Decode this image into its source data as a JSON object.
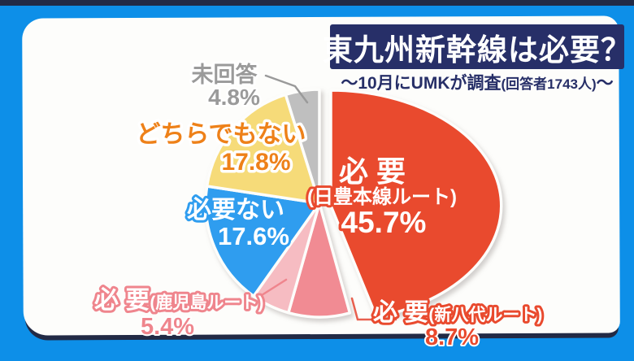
{
  "frame": {
    "background_color": "#0D8FE8",
    "strip_color": "#222A45",
    "panel_color": "#FDFDFB"
  },
  "header": {
    "title": "東九州新幹線は必要？",
    "title_bg_color": "#272F68",
    "subtitle_prefix": "〜10月にUMKが調査",
    "subtitle_paren": "(回答者1743人)",
    "subtitle_suffix": "〜",
    "subtitle_color": "#272F68"
  },
  "chart_data": {
    "type": "pie",
    "title": "東九州新幹線は必要？",
    "subtitle": "〜10月にUMKが調査(回答者1743人)〜",
    "survey_month": "10月",
    "surveyor": "UMK",
    "respondents": 1743,
    "unit": "%",
    "start_angle_deg": 0,
    "direction": "clockwise",
    "slices": [
      {
        "id": "hitsuyo-nippo",
        "label": "必 要",
        "sublabel": "(日豊本線ルート)",
        "value": 45.7,
        "value_text": "45.7%",
        "color": "#E94A2E",
        "label_fill": "#FFFFFF",
        "label_stroke": "#E94A2E"
      },
      {
        "id": "hitsuyo-shinyatsushiro",
        "label": "必 要",
        "sublabel": "(新八代ルート)",
        "value": 8.7,
        "value_text": "8.7%",
        "color": "#F18B93",
        "label_fill": "#FFFFFF",
        "label_stroke": "#E94A2E",
        "value_color": "#E94A2E"
      },
      {
        "id": "hitsuyo-kagoshima",
        "label": "必 要",
        "sublabel": "(鹿児島ルート)",
        "value": 5.4,
        "value_text": "5.4%",
        "color": "#F6BCC2",
        "label_fill": "#FFFFFF",
        "label_stroke": "#EF858D",
        "value_color": "#EF858D"
      },
      {
        "id": "hitsuyonai",
        "label": "必要ない",
        "sublabel": "",
        "value": 17.6,
        "value_text": "17.6%",
        "color": "#2F9DEF",
        "label_fill": "#FFFFFF",
        "label_stroke": "#2F9DEF"
      },
      {
        "id": "dochirademonai",
        "label": "どちらでもない",
        "sublabel": "",
        "value": 17.8,
        "value_text": "17.8%",
        "color": "#F6DB79",
        "label_fill": "#EE8119",
        "label_stroke": "#FFFFFF"
      },
      {
        "id": "mikaito",
        "label": "未回答",
        "sublabel": "",
        "value": 4.8,
        "value_text": "4.8%",
        "color": "#BFBFBF",
        "label_fill": "#9A9A9A",
        "label_stroke": "#FFFFFF"
      }
    ]
  }
}
